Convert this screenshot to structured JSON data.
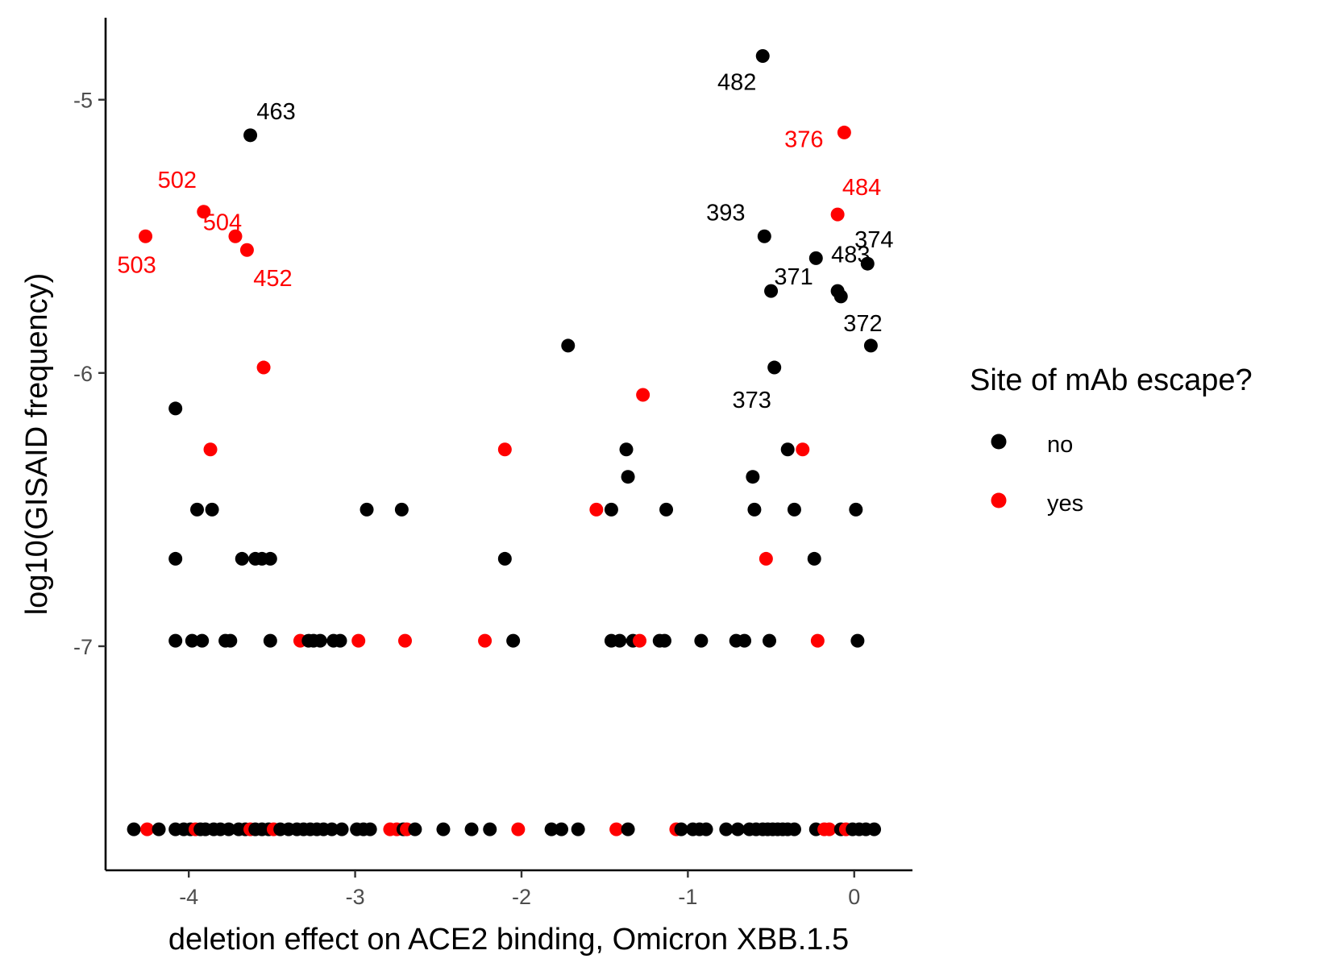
{
  "colors": {
    "no": "#000000",
    "yes": "#ff0000",
    "axis": "#000000",
    "tick_text": "#4d4d4d",
    "background": "#ffffff"
  },
  "legend": {
    "title": "Site of mAb escape?",
    "entries": [
      {
        "label": "no",
        "color": "#000000"
      },
      {
        "label": "yes",
        "color": "#ff0000"
      }
    ]
  },
  "chart_data": {
    "type": "scatter",
    "title": "",
    "xlabel": "deletion effect on ACE2 binding, Omicron XBB.1.5",
    "ylabel": "log10(GISAID frequency)",
    "xlim": [
      -4.5,
      0.35
    ],
    "ylim": [
      -7.82,
      -4.7
    ],
    "xticks": [
      -4,
      -3,
      -2,
      -1,
      0
    ],
    "xtick_labels": [
      "-4",
      "-3",
      "-2",
      "-1",
      "0"
    ],
    "yticks": [
      -5,
      -6,
      -7
    ],
    "ytick_labels": [
      "-5",
      "-6",
      "-7"
    ],
    "grid": false,
    "legend_position": "right",
    "points": [
      {
        "x": -0.55,
        "y": -4.84,
        "group": "no",
        "label": "482"
      },
      {
        "x": -3.63,
        "y": -5.13,
        "group": "no",
        "label": "463"
      },
      {
        "x": -0.06,
        "y": -5.12,
        "group": "yes",
        "label": "376"
      },
      {
        "x": -0.1,
        "y": -5.42,
        "group": "yes",
        "label": "484"
      },
      {
        "x": -3.91,
        "y": -5.41,
        "group": "yes",
        "label": "502"
      },
      {
        "x": -3.72,
        "y": -5.5,
        "group": "yes",
        "label": "504"
      },
      {
        "x": -4.26,
        "y": -5.5,
        "group": "yes",
        "label": "503"
      },
      {
        "x": -3.65,
        "y": -5.55,
        "group": "yes",
        "label": "452"
      },
      {
        "x": -0.54,
        "y": -5.5,
        "group": "no",
        "label": "393"
      },
      {
        "x": -0.23,
        "y": -5.58,
        "group": "no",
        "label": "483"
      },
      {
        "x": 0.08,
        "y": -5.6,
        "group": "no",
        "label": "374"
      },
      {
        "x": -0.5,
        "y": -5.7,
        "group": "no",
        "label": "371"
      },
      {
        "x": -0.1,
        "y": -5.7,
        "group": "no",
        "label": ""
      },
      {
        "x": -0.08,
        "y": -5.72,
        "group": "no",
        "label": ""
      },
      {
        "x": -0.48,
        "y": -5.98,
        "group": "no",
        "label": "373"
      },
      {
        "x": 0.1,
        "y": -5.9,
        "group": "no",
        "label": "372"
      },
      {
        "x": -1.72,
        "y": -5.9,
        "group": "no",
        "label": ""
      },
      {
        "x": -3.55,
        "y": -5.98,
        "group": "yes",
        "label": ""
      },
      {
        "x": -1.27,
        "y": -6.08,
        "group": "yes",
        "label": ""
      },
      {
        "x": -4.08,
        "y": -6.13,
        "group": "no",
        "label": ""
      },
      {
        "x": -3.87,
        "y": -6.28,
        "group": "yes",
        "label": ""
      },
      {
        "x": -2.1,
        "y": -6.28,
        "group": "yes",
        "label": ""
      },
      {
        "x": -1.37,
        "y": -6.28,
        "group": "no",
        "label": ""
      },
      {
        "x": -0.4,
        "y": -6.28,
        "group": "no",
        "label": ""
      },
      {
        "x": -0.31,
        "y": -6.28,
        "group": "yes",
        "label": ""
      },
      {
        "x": -1.36,
        "y": -6.38,
        "group": "no",
        "label": ""
      },
      {
        "x": -0.61,
        "y": -6.38,
        "group": "no",
        "label": ""
      },
      {
        "x": -3.95,
        "y": -6.5,
        "group": "no",
        "label": ""
      },
      {
        "x": -3.86,
        "y": -6.5,
        "group": "no",
        "label": ""
      },
      {
        "x": -2.93,
        "y": -6.5,
        "group": "no",
        "label": ""
      },
      {
        "x": -2.72,
        "y": -6.5,
        "group": "no",
        "label": ""
      },
      {
        "x": -1.55,
        "y": -6.5,
        "group": "yes",
        "label": ""
      },
      {
        "x": -1.46,
        "y": -6.5,
        "group": "no",
        "label": ""
      },
      {
        "x": -1.13,
        "y": -6.5,
        "group": "no",
        "label": ""
      },
      {
        "x": -0.6,
        "y": -6.5,
        "group": "no",
        "label": ""
      },
      {
        "x": -0.36,
        "y": -6.5,
        "group": "no",
        "label": ""
      },
      {
        "x": 0.01,
        "y": -6.5,
        "group": "no",
        "label": ""
      },
      {
        "x": -4.08,
        "y": -6.68,
        "group": "no",
        "label": ""
      },
      {
        "x": -3.68,
        "y": -6.68,
        "group": "no",
        "label": ""
      },
      {
        "x": -3.6,
        "y": -6.68,
        "group": "no",
        "label": ""
      },
      {
        "x": -3.56,
        "y": -6.68,
        "group": "no",
        "label": ""
      },
      {
        "x": -3.51,
        "y": -6.68,
        "group": "no",
        "label": ""
      },
      {
        "x": -2.1,
        "y": -6.68,
        "group": "no",
        "label": ""
      },
      {
        "x": -0.53,
        "y": -6.68,
        "group": "yes",
        "label": ""
      },
      {
        "x": -0.24,
        "y": -6.68,
        "group": "no",
        "label": ""
      },
      {
        "x": -4.08,
        "y": -6.98,
        "group": "no",
        "label": ""
      },
      {
        "x": -3.98,
        "y": -6.98,
        "group": "no",
        "label": ""
      },
      {
        "x": -3.92,
        "y": -6.98,
        "group": "no",
        "label": ""
      },
      {
        "x": -3.78,
        "y": -6.98,
        "group": "no",
        "label": ""
      },
      {
        "x": -3.75,
        "y": -6.98,
        "group": "no",
        "label": ""
      },
      {
        "x": -3.51,
        "y": -6.98,
        "group": "no",
        "label": ""
      },
      {
        "x": -3.33,
        "y": -6.98,
        "group": "yes",
        "label": ""
      },
      {
        "x": -3.28,
        "y": -6.98,
        "group": "no",
        "label": ""
      },
      {
        "x": -3.25,
        "y": -6.98,
        "group": "no",
        "label": ""
      },
      {
        "x": -3.21,
        "y": -6.98,
        "group": "no",
        "label": ""
      },
      {
        "x": -3.13,
        "y": -6.98,
        "group": "no",
        "label": ""
      },
      {
        "x": -3.09,
        "y": -6.98,
        "group": "no",
        "label": ""
      },
      {
        "x": -2.98,
        "y": -6.98,
        "group": "yes",
        "label": ""
      },
      {
        "x": -2.7,
        "y": -6.98,
        "group": "yes",
        "label": ""
      },
      {
        "x": -2.22,
        "y": -6.98,
        "group": "yes",
        "label": ""
      },
      {
        "x": -2.05,
        "y": -6.98,
        "group": "no",
        "label": ""
      },
      {
        "x": -1.46,
        "y": -6.98,
        "group": "no",
        "label": ""
      },
      {
        "x": -1.41,
        "y": -6.98,
        "group": "no",
        "label": ""
      },
      {
        "x": -1.33,
        "y": -6.98,
        "group": "no",
        "label": ""
      },
      {
        "x": -1.29,
        "y": -6.98,
        "group": "yes",
        "label": ""
      },
      {
        "x": -1.17,
        "y": -6.98,
        "group": "no",
        "label": ""
      },
      {
        "x": -1.14,
        "y": -6.98,
        "group": "no",
        "label": ""
      },
      {
        "x": -0.92,
        "y": -6.98,
        "group": "no",
        "label": ""
      },
      {
        "x": -0.71,
        "y": -6.98,
        "group": "no",
        "label": ""
      },
      {
        "x": -0.66,
        "y": -6.98,
        "group": "no",
        "label": ""
      },
      {
        "x": -0.51,
        "y": -6.98,
        "group": "no",
        "label": ""
      },
      {
        "x": -0.22,
        "y": -6.98,
        "group": "yes",
        "label": ""
      },
      {
        "x": 0.02,
        "y": -6.98,
        "group": "no",
        "label": ""
      },
      {
        "x": -4.33,
        "y": -7.67,
        "group": "no",
        "label": ""
      },
      {
        "x": -4.25,
        "y": -7.67,
        "group": "yes",
        "label": ""
      },
      {
        "x": -4.18,
        "y": -7.67,
        "group": "no",
        "label": ""
      },
      {
        "x": -4.08,
        "y": -7.67,
        "group": "no",
        "label": ""
      },
      {
        "x": -4.03,
        "y": -7.67,
        "group": "no",
        "label": ""
      },
      {
        "x": -3.99,
        "y": -7.67,
        "group": "no",
        "label": ""
      },
      {
        "x": -3.96,
        "y": -7.67,
        "group": "yes",
        "label": ""
      },
      {
        "x": -3.93,
        "y": -7.67,
        "group": "no",
        "label": ""
      },
      {
        "x": -3.9,
        "y": -7.67,
        "group": "no",
        "label": ""
      },
      {
        "x": -3.85,
        "y": -7.67,
        "group": "no",
        "label": ""
      },
      {
        "x": -3.81,
        "y": -7.67,
        "group": "no",
        "label": ""
      },
      {
        "x": -3.76,
        "y": -7.67,
        "group": "no",
        "label": ""
      },
      {
        "x": -3.7,
        "y": -7.67,
        "group": "no",
        "label": ""
      },
      {
        "x": -3.66,
        "y": -7.67,
        "group": "no",
        "label": ""
      },
      {
        "x": -3.63,
        "y": -7.67,
        "group": "yes",
        "label": ""
      },
      {
        "x": -3.6,
        "y": -7.67,
        "group": "no",
        "label": ""
      },
      {
        "x": -3.56,
        "y": -7.67,
        "group": "no",
        "label": ""
      },
      {
        "x": -3.52,
        "y": -7.67,
        "group": "no",
        "label": ""
      },
      {
        "x": -3.49,
        "y": -7.67,
        "group": "yes",
        "label": ""
      },
      {
        "x": -3.45,
        "y": -7.67,
        "group": "no",
        "label": ""
      },
      {
        "x": -3.4,
        "y": -7.67,
        "group": "no",
        "label": ""
      },
      {
        "x": -3.35,
        "y": -7.67,
        "group": "no",
        "label": ""
      },
      {
        "x": -3.31,
        "y": -7.67,
        "group": "no",
        "label": ""
      },
      {
        "x": -3.27,
        "y": -7.67,
        "group": "no",
        "label": ""
      },
      {
        "x": -3.23,
        "y": -7.67,
        "group": "no",
        "label": ""
      },
      {
        "x": -3.19,
        "y": -7.67,
        "group": "no",
        "label": ""
      },
      {
        "x": -3.14,
        "y": -7.67,
        "group": "no",
        "label": ""
      },
      {
        "x": -3.08,
        "y": -7.67,
        "group": "no",
        "label": ""
      },
      {
        "x": -2.99,
        "y": -7.67,
        "group": "no",
        "label": ""
      },
      {
        "x": -2.95,
        "y": -7.67,
        "group": "no",
        "label": ""
      },
      {
        "x": -2.91,
        "y": -7.67,
        "group": "no",
        "label": ""
      },
      {
        "x": -2.79,
        "y": -7.67,
        "group": "yes",
        "label": ""
      },
      {
        "x": -2.75,
        "y": -7.67,
        "group": "yes",
        "label": ""
      },
      {
        "x": -2.71,
        "y": -7.67,
        "group": "no",
        "label": ""
      },
      {
        "x": -2.69,
        "y": -7.67,
        "group": "yes",
        "label": ""
      },
      {
        "x": -2.64,
        "y": -7.67,
        "group": "no",
        "label": ""
      },
      {
        "x": -2.47,
        "y": -7.67,
        "group": "no",
        "label": ""
      },
      {
        "x": -2.3,
        "y": -7.67,
        "group": "no",
        "label": ""
      },
      {
        "x": -2.19,
        "y": -7.67,
        "group": "no",
        "label": ""
      },
      {
        "x": -2.02,
        "y": -7.67,
        "group": "yes",
        "label": ""
      },
      {
        "x": -1.82,
        "y": -7.67,
        "group": "no",
        "label": ""
      },
      {
        "x": -1.76,
        "y": -7.67,
        "group": "no",
        "label": ""
      },
      {
        "x": -1.66,
        "y": -7.67,
        "group": "no",
        "label": ""
      },
      {
        "x": -1.43,
        "y": -7.67,
        "group": "yes",
        "label": ""
      },
      {
        "x": -1.36,
        "y": -7.67,
        "group": "no",
        "label": ""
      },
      {
        "x": -1.07,
        "y": -7.67,
        "group": "yes",
        "label": ""
      },
      {
        "x": -1.04,
        "y": -7.67,
        "group": "no",
        "label": ""
      },
      {
        "x": -0.97,
        "y": -7.67,
        "group": "no",
        "label": ""
      },
      {
        "x": -0.93,
        "y": -7.67,
        "group": "no",
        "label": ""
      },
      {
        "x": -0.89,
        "y": -7.67,
        "group": "no",
        "label": ""
      },
      {
        "x": -0.77,
        "y": -7.67,
        "group": "no",
        "label": ""
      },
      {
        "x": -0.7,
        "y": -7.67,
        "group": "no",
        "label": ""
      },
      {
        "x": -0.63,
        "y": -7.67,
        "group": "no",
        "label": ""
      },
      {
        "x": -0.59,
        "y": -7.67,
        "group": "no",
        "label": ""
      },
      {
        "x": -0.55,
        "y": -7.67,
        "group": "no",
        "label": ""
      },
      {
        "x": -0.52,
        "y": -7.67,
        "group": "no",
        "label": ""
      },
      {
        "x": -0.49,
        "y": -7.67,
        "group": "no",
        "label": ""
      },
      {
        "x": -0.46,
        "y": -7.67,
        "group": "no",
        "label": ""
      },
      {
        "x": -0.43,
        "y": -7.67,
        "group": "no",
        "label": ""
      },
      {
        "x": -0.4,
        "y": -7.67,
        "group": "no",
        "label": ""
      },
      {
        "x": -0.36,
        "y": -7.67,
        "group": "no",
        "label": ""
      },
      {
        "x": -0.23,
        "y": -7.67,
        "group": "no",
        "label": ""
      },
      {
        "x": -0.18,
        "y": -7.67,
        "group": "yes",
        "label": ""
      },
      {
        "x": -0.15,
        "y": -7.67,
        "group": "yes",
        "label": ""
      },
      {
        "x": -0.08,
        "y": -7.67,
        "group": "no",
        "label": ""
      },
      {
        "x": -0.05,
        "y": -7.67,
        "group": "yes",
        "label": ""
      },
      {
        "x": -0.01,
        "y": -7.67,
        "group": "no",
        "label": ""
      },
      {
        "x": 0.03,
        "y": -7.67,
        "group": "no",
        "label": ""
      },
      {
        "x": 0.07,
        "y": -7.67,
        "group": "no",
        "label": ""
      },
      {
        "x": 0.12,
        "y": -7.67,
        "group": "no",
        "label": ""
      }
    ]
  }
}
